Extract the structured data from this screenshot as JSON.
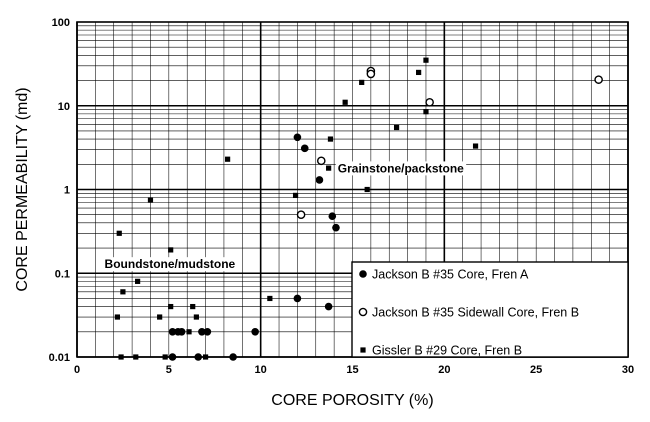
{
  "chart_data": {
    "type": "scatter",
    "xlabel": "CORE POROSITY (%)",
    "ylabel": "CORE PERMEABILITY (md)",
    "xlim": [
      0,
      30
    ],
    "ylim": [
      0.01,
      100
    ],
    "yscale": "log",
    "x_ticks": [
      0,
      5,
      10,
      15,
      20,
      25,
      30
    ],
    "y_ticks": [
      0.01,
      0.1,
      1,
      10,
      100
    ],
    "x_tick_labels": [
      "0",
      "5",
      "10",
      "15",
      "20",
      "25",
      "30"
    ],
    "y_tick_labels": [
      "0.01",
      "0.1",
      "1",
      "10",
      "100"
    ],
    "grid": true,
    "legend_position": "bottom-right",
    "annotations": [
      {
        "text": "Grainstone/packstone",
        "x": 14.2,
        "y": 1.6
      },
      {
        "text": "Boundstone/mudstone",
        "x": 1.5,
        "y": 0.115
      }
    ],
    "series": [
      {
        "name": "Jackson B #35 Core, Fren A",
        "marker": "filled-circle",
        "points": [
          [
            12.0,
            4.2
          ],
          [
            12.4,
            3.1
          ],
          [
            13.2,
            1.3
          ],
          [
            13.9,
            0.48
          ],
          [
            14.1,
            0.35
          ],
          [
            12.0,
            0.05
          ],
          [
            13.7,
            0.04
          ],
          [
            9.7,
            0.02
          ],
          [
            8.5,
            0.01
          ],
          [
            5.2,
            0.01
          ],
          [
            5.2,
            0.02
          ],
          [
            5.5,
            0.02
          ],
          [
            5.7,
            0.02
          ],
          [
            6.6,
            0.01
          ],
          [
            6.8,
            0.02
          ],
          [
            7.1,
            0.02
          ]
        ]
      },
      {
        "name": "Jackson B #35 Sidewall Core, Fren B",
        "marker": "open-circle",
        "points": [
          [
            16.0,
            26
          ],
          [
            16.0,
            24
          ],
          [
            19.2,
            11
          ],
          [
            28.4,
            20.5
          ],
          [
            13.3,
            2.2
          ],
          [
            12.2,
            0.5
          ]
        ]
      },
      {
        "name": "Gissler B #29 Core, Fren B",
        "marker": "filled-square",
        "points": [
          [
            2.3,
            0.3
          ],
          [
            2.5,
            0.06
          ],
          [
            2.2,
            0.03
          ],
          [
            2.4,
            0.01
          ],
          [
            3.3,
            0.08
          ],
          [
            3.2,
            0.01
          ],
          [
            4.0,
            0.75
          ],
          [
            4.5,
            0.03
          ],
          [
            4.8,
            0.01
          ],
          [
            5.1,
            0.19
          ],
          [
            5.1,
            0.04
          ],
          [
            6.1,
            0.02
          ],
          [
            6.3,
            0.04
          ],
          [
            6.5,
            0.03
          ],
          [
            7.0,
            0.01
          ],
          [
            8.2,
            2.3
          ],
          [
            10.5,
            0.05
          ],
          [
            11.9,
            0.85
          ],
          [
            13.8,
            4.0
          ],
          [
            13.7,
            1.8
          ],
          [
            14.6,
            11
          ],
          [
            15.5,
            19
          ],
          [
            15.8,
            1.0
          ],
          [
            17.4,
            5.5
          ],
          [
            18.6,
            25
          ],
          [
            19.0,
            35
          ],
          [
            19.0,
            8.5
          ],
          [
            21.7,
            3.3
          ]
        ]
      }
    ]
  }
}
